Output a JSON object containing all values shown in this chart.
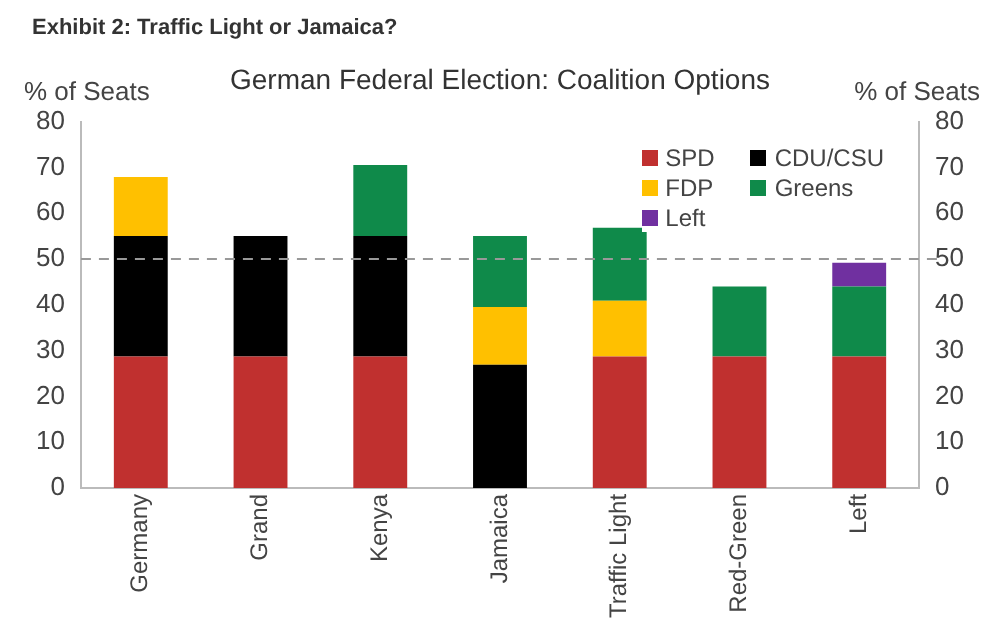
{
  "chart_data": {
    "type": "bar",
    "title": "Exhibit 2: Traffic Light or Jamaica?",
    "subtitle": "German Federal Election: Coalition Options",
    "ylabel": "% of Seats",
    "y2label": "% of Seats",
    "categories": [
      "Germany",
      "Grand",
      "Kenya",
      "Jamaica",
      "Traffic Light",
      "Red-Green",
      "Left"
    ],
    "stacked": true,
    "series": [
      {
        "name": "SPD",
        "color": "#c0302f",
        "values": [
          28.7,
          28.7,
          28.7,
          null,
          28.7,
          28.7,
          28.7
        ]
      },
      {
        "name": "CDU/CSU",
        "color": "#000000",
        "values": [
          26.3,
          26.3,
          26.3,
          26.9,
          null,
          null,
          null
        ]
      },
      {
        "name": "FDP",
        "color": "#ffc000",
        "values": [
          12.9,
          null,
          null,
          12.6,
          12.2,
          null,
          null
        ]
      },
      {
        "name": "Greens",
        "color": "#0f8a4a",
        "values": [
          null,
          null,
          15.5,
          15.5,
          15.9,
          15.3,
          15.3
        ]
      },
      {
        "name": "Left",
        "color": "#7030a0",
        "values": [
          null,
          null,
          null,
          null,
          null,
          null,
          5.2
        ]
      }
    ],
    "ylim": [
      0,
      80
    ],
    "yticks": [
      0,
      10,
      20,
      30,
      40,
      50,
      60,
      70,
      80
    ],
    "y2lim": [
      0,
      80
    ],
    "y2ticks": [
      0,
      10,
      20,
      30,
      40,
      50,
      60,
      70,
      80
    ],
    "ref_lines": [
      {
        "axis": "y",
        "value": 50,
        "color": "#999999",
        "line_style": "dashed"
      }
    ],
    "grid": false,
    "legend": "top right"
  }
}
